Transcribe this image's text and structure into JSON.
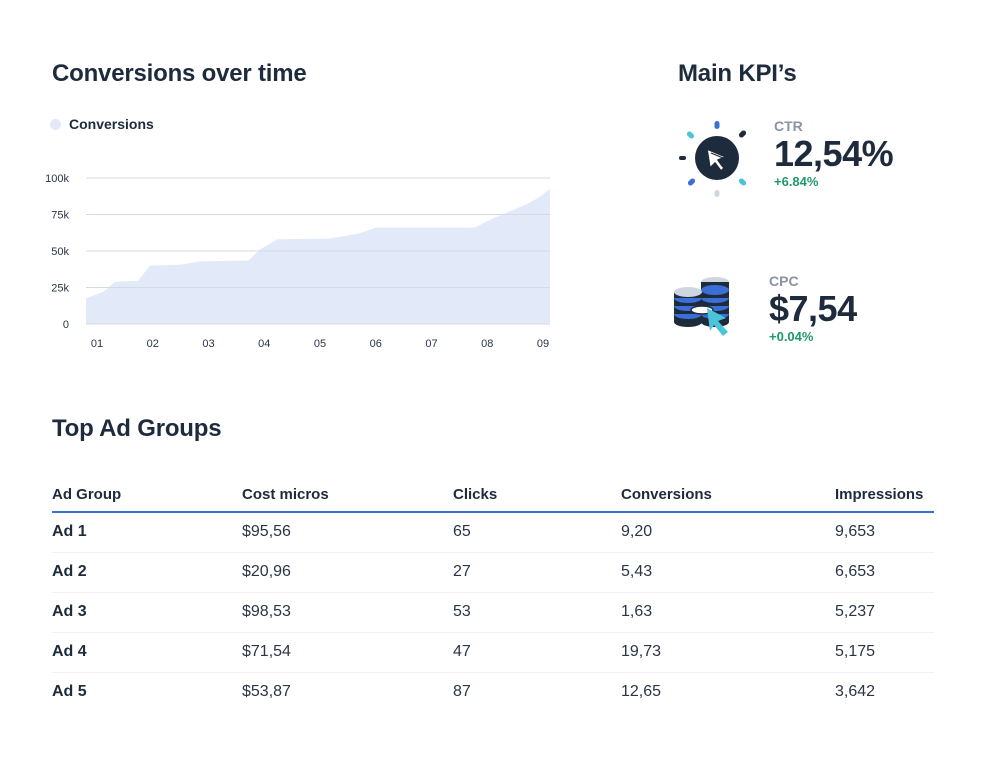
{
  "chart_section": {
    "title": "Conversions over time"
  },
  "chart_data": {
    "type": "area",
    "title": "Conversions over time",
    "series": [
      {
        "name": "Conversions",
        "color": "#e2e9f8",
        "points": [
          [
            0.0,
            17500
          ],
          [
            0.3,
            22000
          ],
          [
            0.5,
            29000
          ],
          [
            0.9,
            29500
          ],
          [
            1.1,
            40000
          ],
          [
            1.6,
            40500
          ],
          [
            2.0,
            43000
          ],
          [
            2.8,
            43500
          ],
          [
            3.0,
            51000
          ],
          [
            3.3,
            58000
          ],
          [
            4.2,
            58500
          ],
          [
            4.7,
            62000
          ],
          [
            5.0,
            66000
          ],
          [
            6.7,
            66000
          ],
          [
            7.0,
            72000
          ],
          [
            7.3,
            77000
          ],
          [
            7.6,
            82000
          ],
          [
            7.8,
            86500
          ],
          [
            8.0,
            92500
          ]
        ]
      }
    ],
    "x_tick_labels": [
      "01",
      "02",
      "03",
      "04",
      "05",
      "06",
      "07",
      "08",
      "09"
    ],
    "y_ticks": [
      {
        "value": 0,
        "label": "0"
      },
      {
        "value": 25000,
        "label": "25k"
      },
      {
        "value": 50000,
        "label": "50k"
      },
      {
        "value": 75000,
        "label": "75k"
      },
      {
        "value": 100000,
        "label": "100k"
      }
    ],
    "ylim": [
      0,
      100000
    ],
    "grid": true,
    "legend": "top-left",
    "xlabel": "",
    "ylabel": ""
  },
  "kpi_section": {
    "title": "Main KPI’s",
    "items": [
      {
        "label": "CTR",
        "value": "12,54%",
        "change": "+6.84%",
        "icon": "cursor-click-icon"
      },
      {
        "label": "CPC",
        "value": "$7,54",
        "change": "+0.04%",
        "icon": "coins-cursor-icon"
      }
    ]
  },
  "table_section": {
    "title": "Top Ad Groups",
    "columns": [
      "Ad Group",
      "Cost micros",
      "Clicks",
      "Conversions",
      "Impressions"
    ],
    "rows": [
      [
        "Ad 1",
        "$95,56",
        "65",
        "9,20",
        "9,653"
      ],
      [
        "Ad 2",
        "$20,96",
        "27",
        "5,43",
        "6,653"
      ],
      [
        "Ad 3",
        "$98,53",
        "53",
        "1,63",
        "5,237"
      ],
      [
        "Ad 4",
        "$71,54",
        "47",
        "19,73",
        "5,175"
      ],
      [
        "Ad 5",
        "$53,87",
        "87",
        "12,65",
        "3,642"
      ]
    ]
  },
  "colors": {
    "accent": "#3b6fd8",
    "positive": "#1f9a6a",
    "area_fill": "#e2e9f8",
    "icon_cyan": "#4cc4d8",
    "icon_navy": "#1e2b3c"
  }
}
